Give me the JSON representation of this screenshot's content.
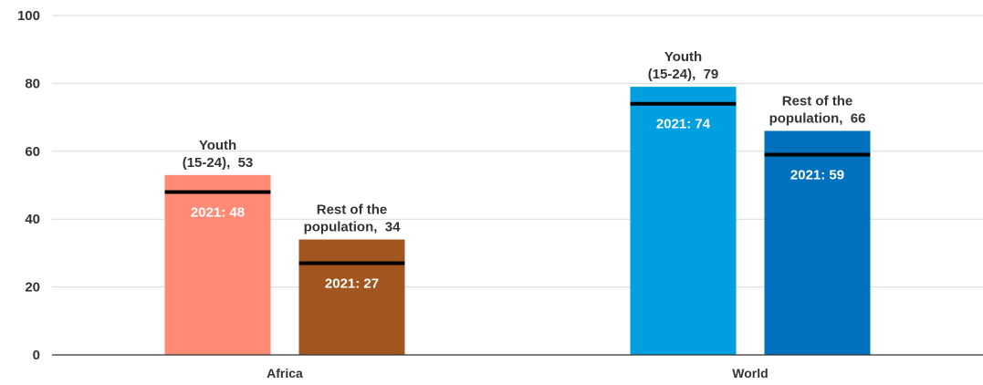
{
  "chart_data": {
    "type": "bar",
    "title": "",
    "xlabel": "",
    "ylabel": "",
    "categories": [
      "Africa",
      "World"
    ],
    "ylim": [
      0,
      100
    ],
    "yticks": [
      0,
      20,
      40,
      60,
      80,
      100
    ],
    "grid": true,
    "bars": [
      {
        "category": "Africa",
        "label_lines": [
          "Youth",
          "(15-24),  53"
        ],
        "value": 53,
        "ref_value": 48,
        "ref_label": "2021: 48",
        "color": "#ff8a75"
      },
      {
        "category": "Africa",
        "label_lines": [
          "Rest of the",
          "population,  34"
        ],
        "value": 34,
        "ref_value": 27,
        "ref_label": "2021: 27",
        "color": "#a0561e"
      },
      {
        "category": "World",
        "label_lines": [
          "Youth",
          "(15-24),  79"
        ],
        "value": 79,
        "ref_value": 74,
        "ref_label": "2021: 74",
        "color": "#009fdf"
      },
      {
        "category": "World",
        "label_lines": [
          "Rest of the",
          "population,  66"
        ],
        "value": 66,
        "ref_value": 59,
        "ref_label": "2021: 59",
        "color": "#0071bc"
      }
    ]
  }
}
